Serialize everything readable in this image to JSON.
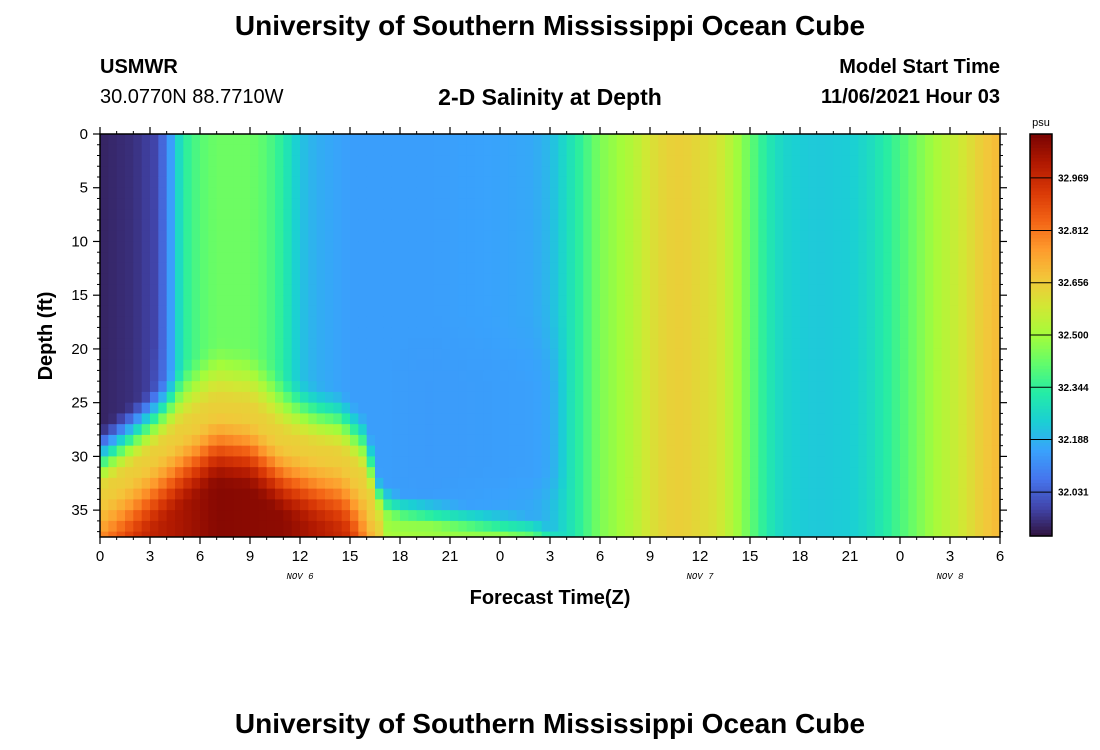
{
  "header": {
    "title": "University of Southern Mississippi Ocean Cube",
    "station": "USMWR",
    "coordinates": "30.0770N  88.7710W",
    "subtitle": "2-D Salinity at Depth",
    "start_label": "Model Start Time",
    "start_value": "11/06/2021 Hour 03"
  },
  "footer": {
    "title": "University of Southern Mississippi Ocean Cube"
  },
  "chart_data": {
    "type": "heatmap",
    "title": "2-D Salinity at Depth",
    "xlabel": "Forecast Time(Z)",
    "ylabel": "Depth (ft)",
    "colorbar_label": "psu",
    "x_ticks": [
      "0",
      "3",
      "6",
      "9",
      "12",
      "15",
      "18",
      "21",
      "0",
      "3",
      "6",
      "9",
      "12",
      "15",
      "18",
      "21",
      "0",
      "3",
      "6"
    ],
    "x_ticks_forecast_hours": [
      0,
      3,
      6,
      9,
      12,
      15,
      18,
      21,
      24,
      27,
      30,
      33,
      36,
      39,
      42,
      45,
      48,
      51,
      54
    ],
    "date_labels": [
      {
        "text": "NOV 6",
        "hour": 12
      },
      {
        "text": "NOV 7",
        "hour": 36
      },
      {
        "text": "NOV 8",
        "hour": 51
      }
    ],
    "y_ticks": [
      0,
      5,
      10,
      15,
      20,
      25,
      30,
      35
    ],
    "xlim": [
      0,
      54
    ],
    "ylim": [
      0,
      37.5
    ],
    "y_inverted": true,
    "colorbar_ticks": [
      32.031,
      32.188,
      32.344,
      32.5,
      32.656,
      32.812,
      32.969
    ],
    "colorbar_range": [
      31.9,
      33.1
    ],
    "colormap": [
      "#30123b",
      "#4145ab",
      "#4675ed",
      "#39a2fc",
      "#1bcfd4",
      "#24eca6",
      "#61fc6c",
      "#a4fc3b",
      "#d1e834",
      "#f3c63a",
      "#fe9b2d",
      "#f36315",
      "#d93806",
      "#b11901",
      "#7a0402"
    ],
    "surface_salinity_by_hour": {
      "hours": [
        0,
        2,
        3,
        4,
        4.5,
        5,
        6,
        7,
        9,
        10,
        11,
        12,
        13,
        15,
        17,
        20,
        24,
        26,
        27,
        28,
        29,
        30,
        32,
        33,
        34,
        35,
        37,
        38,
        39,
        40,
        41,
        42,
        43,
        45,
        46,
        47,
        48,
        49,
        50,
        51,
        52,
        53,
        54
      ],
      "values": [
        31.93,
        31.95,
        31.98,
        32.08,
        32.22,
        32.33,
        32.4,
        32.43,
        32.43,
        32.4,
        32.33,
        32.22,
        32.18,
        32.15,
        32.15,
        32.15,
        32.16,
        32.17,
        32.2,
        32.28,
        32.36,
        32.45,
        32.53,
        32.6,
        32.64,
        32.65,
        32.6,
        32.52,
        32.42,
        32.32,
        32.26,
        32.24,
        32.23,
        32.24,
        32.27,
        32.32,
        32.38,
        32.44,
        32.5,
        32.55,
        32.6,
        32.66,
        32.7
      ]
    },
    "bottom_layer_note": "high salinity (~33.1 psu) near bottom from hour 0 to 16, shoaling to ~22 ft at hours 6-9; pooled low salinity (~32.15 psu) at 20-30 ft from hour 18 to 27"
  }
}
